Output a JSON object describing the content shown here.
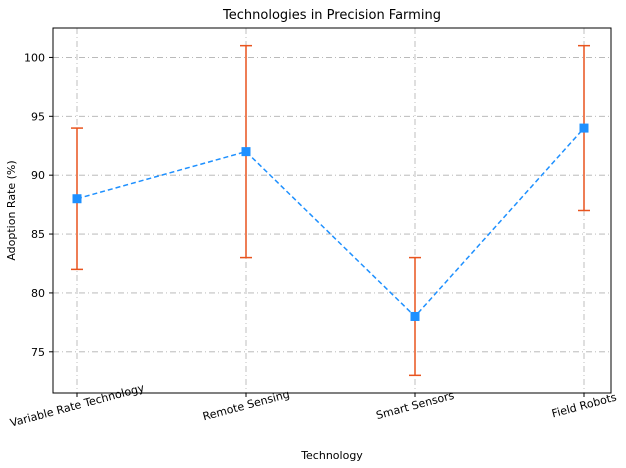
{
  "chart_data": {
    "type": "line",
    "title": "Technologies in Precision Farming",
    "xlabel": "Technology",
    "ylabel": "Adoption Rate (%)",
    "categories": [
      "Variable Rate Technology",
      "Remote Sensing",
      "Smart Sensors",
      "Field Robots"
    ],
    "series": [
      {
        "values": [
          88,
          92,
          78,
          94
        ],
        "error_low": [
          82,
          83,
          73,
          87
        ],
        "error_high": [
          94,
          101,
          83,
          101
        ],
        "line_style": "dashed",
        "marker": "square",
        "color": "#1e90ff",
        "error_color": "#e8541e"
      }
    ],
    "ylim": [
      71.5,
      102.5
    ],
    "yticks": [
      75,
      80,
      85,
      90,
      95,
      100
    ],
    "grid": true,
    "legend": "none"
  }
}
